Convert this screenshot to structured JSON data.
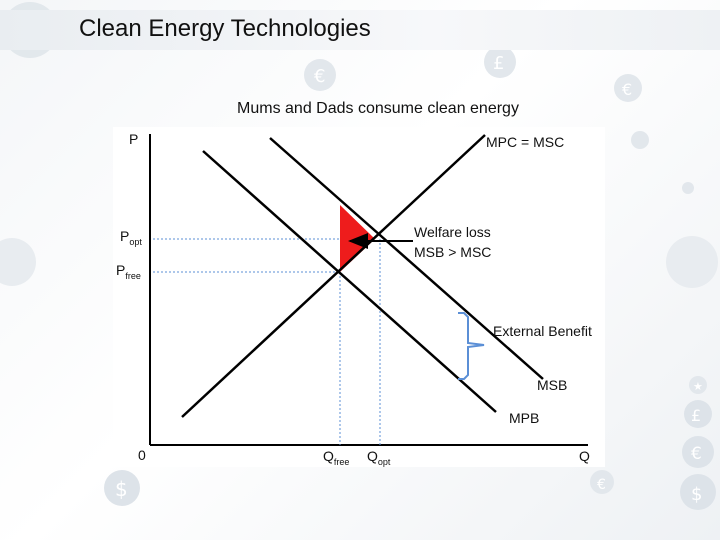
{
  "slide": {
    "title": "Clean Energy Technologies",
    "subtitle": "Mums and Dads consume clean energy"
  },
  "background_symbols": [
    "€",
    "£",
    "€",
    "$",
    "€",
    "£",
    "€",
    "$",
    "★"
  ],
  "colors": {
    "welfare_loss": "#ee1c1c",
    "external_benefit_brace": "#5b8fd6",
    "guide_lines": "#5b8fd6",
    "curve": "#000000"
  },
  "chart": {
    "axis_p_label": "P",
    "axis_q_label": "Q",
    "origin_label": "0",
    "p_opt": {
      "main": "P",
      "sub": "opt"
    },
    "p_free": {
      "main": "P",
      "sub": "free"
    },
    "q_free": {
      "main": "Q",
      "sub": "free"
    },
    "q_opt": {
      "main": "Q",
      "sub": "opt"
    },
    "curve_supply_label": "MPC  = MSC",
    "curve_msb_label": "MSB",
    "curve_mpb_label": "MPB",
    "welfare_loss_line1": "Welfare loss",
    "welfare_loss_line2": "MSB > MSC",
    "external_benefit_label": "External Benefit"
  }
}
